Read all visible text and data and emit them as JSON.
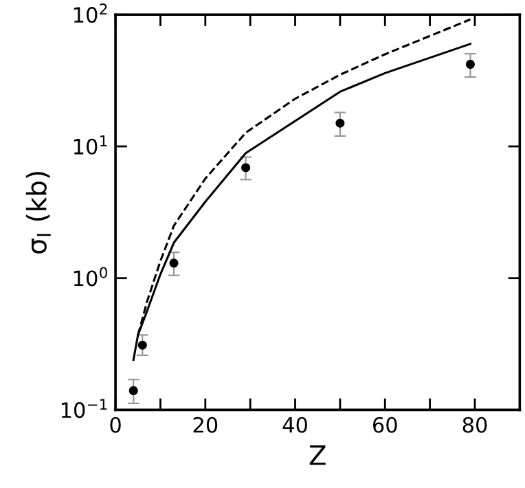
{
  "chart_data": {
    "type": "scatter",
    "xlabel": "Z",
    "ylabel": "σ$_{I}$ (kb)",
    "log": "y",
    "xlim": [
      0,
      90
    ],
    "ylim": [
      0.1,
      100
    ],
    "xticks": [
      0,
      {
        "value": 10,
        "label": null
      },
      20,
      {
        "value": 30,
        "label": null
      },
      40,
      {
        "value": 50,
        "label": null
      },
      60,
      {
        "value": 70,
        "label": null
      },
      80
    ],
    "yticks": [
      {
        "value": 0.1,
        "label": "10$^{−1}$"
      },
      {
        "value": 1,
        "label": "10$^{0}$"
      },
      {
        "value": 10,
        "label": "10$^{1}$"
      },
      {
        "value": 100,
        "label": "10$^{2}$"
      }
    ],
    "grid": false,
    "legend": false,
    "series": [
      {
        "color": "#000000",
        "marker": "circle",
        "x": [
          4,
          6,
          13,
          29,
          50,
          79
        ],
        "values": [
          0.14,
          0.31,
          1.3,
          6.9,
          15,
          42
        ],
        "errors": [
          [
            0.112,
            0.17
          ],
          [
            0.26,
            0.37
          ],
          [
            1.05,
            1.57
          ],
          [
            5.6,
            8.3
          ],
          [
            12,
            18.1
          ],
          [
            33.6,
            50.6
          ]
        ]
      },
      {
        "type": "line",
        "color": "#000000",
        "line_style": "solid",
        "x": [
          4,
          5,
          7,
          10,
          13,
          20,
          29,
          40,
          50,
          60,
          79
        ],
        "values": [
          0.24,
          0.37,
          0.56,
          1.07,
          1.86,
          3.8,
          8.9,
          15.6,
          26,
          36,
          60
        ]
      },
      {
        "type": "line",
        "color": "#000000",
        "line_style": "dashed",
        "x": [
          5,
          7,
          10,
          13,
          20,
          29,
          40,
          50,
          60,
          79
        ],
        "values": [
          0.37,
          0.66,
          1.35,
          2.5,
          5.7,
          12.7,
          23,
          35,
          50,
          92
        ]
      }
    ]
  }
}
